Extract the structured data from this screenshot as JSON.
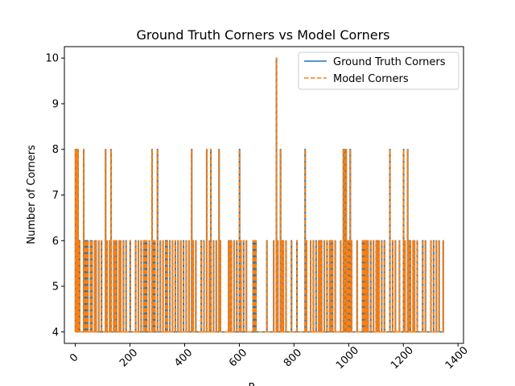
{
  "chart_data": {
    "type": "line",
    "title": "Ground Truth Corners vs Model Corners",
    "xlabel": "R",
    "ylabel": "Number of Corners",
    "xlim": [
      -40,
      1420
    ],
    "ylim": [
      3.75,
      10.25
    ],
    "xticks": [
      0,
      200,
      400,
      600,
      800,
      1000,
      1200,
      1400
    ],
    "yticks": [
      4,
      5,
      6,
      7,
      8,
      9,
      10
    ],
    "legend_position": "upper right",
    "grid": false,
    "series": [
      {
        "name": "Ground Truth Corners",
        "color": "#1f77b4",
        "style": "solid",
        "spikes": [
          [
            0,
            8
          ],
          [
            3,
            8
          ],
          [
            6,
            8
          ],
          [
            9,
            8
          ],
          [
            12,
            6
          ],
          [
            15,
            6
          ],
          [
            30,
            8
          ],
          [
            35,
            6
          ],
          [
            40,
            6
          ],
          [
            45,
            6
          ],
          [
            55,
            6
          ],
          [
            60,
            6
          ],
          [
            70,
            6
          ],
          [
            75,
            6
          ],
          [
            85,
            6
          ],
          [
            95,
            6
          ],
          [
            110,
            8
          ],
          [
            115,
            6
          ],
          [
            125,
            6
          ],
          [
            130,
            8
          ],
          [
            140,
            6
          ],
          [
            145,
            6
          ],
          [
            150,
            6
          ],
          [
            160,
            6
          ],
          [
            165,
            6
          ],
          [
            175,
            6
          ],
          [
            185,
            6
          ],
          [
            200,
            6
          ],
          [
            220,
            6
          ],
          [
            230,
            6
          ],
          [
            240,
            6
          ],
          [
            250,
            6
          ],
          [
            255,
            6
          ],
          [
            260,
            6
          ],
          [
            270,
            6
          ],
          [
            280,
            8
          ],
          [
            285,
            6
          ],
          [
            290,
            6
          ],
          [
            300,
            8
          ],
          [
            310,
            6
          ],
          [
            320,
            6
          ],
          [
            330,
            6
          ],
          [
            335,
            6
          ],
          [
            345,
            6
          ],
          [
            355,
            6
          ],
          [
            365,
            6
          ],
          [
            375,
            6
          ],
          [
            385,
            6
          ],
          [
            395,
            6
          ],
          [
            405,
            6
          ],
          [
            415,
            6
          ],
          [
            425,
            8
          ],
          [
            430,
            6
          ],
          [
            440,
            6
          ],
          [
            460,
            6
          ],
          [
            470,
            6
          ],
          [
            480,
            8
          ],
          [
            490,
            6
          ],
          [
            495,
            8
          ],
          [
            505,
            6
          ],
          [
            515,
            6
          ],
          [
            525,
            8
          ],
          [
            530,
            6
          ],
          [
            560,
            6
          ],
          [
            565,
            6
          ],
          [
            570,
            6
          ],
          [
            580,
            6
          ],
          [
            590,
            6
          ],
          [
            600,
            8
          ],
          [
            605,
            6
          ],
          [
            615,
            6
          ],
          [
            625,
            6
          ],
          [
            650,
            6
          ],
          [
            655,
            6
          ],
          [
            660,
            6
          ],
          [
            700,
            6
          ],
          [
            725,
            6
          ],
          [
            735,
            10
          ],
          [
            740,
            6
          ],
          [
            750,
            8
          ],
          [
            755,
            6
          ],
          [
            760,
            6
          ],
          [
            770,
            6
          ],
          [
            790,
            6
          ],
          [
            810,
            6
          ],
          [
            840,
            8
          ],
          [
            845,
            6
          ],
          [
            860,
            6
          ],
          [
            870,
            6
          ],
          [
            880,
            6
          ],
          [
            890,
            6
          ],
          [
            895,
            6
          ],
          [
            900,
            6
          ],
          [
            910,
            6
          ],
          [
            920,
            6
          ],
          [
            930,
            6
          ],
          [
            935,
            6
          ],
          [
            940,
            6
          ],
          [
            950,
            6
          ],
          [
            970,
            6
          ],
          [
            980,
            8
          ],
          [
            985,
            8
          ],
          [
            990,
            8
          ],
          [
            995,
            6
          ],
          [
            1000,
            6
          ],
          [
            1005,
            8
          ],
          [
            1010,
            6
          ],
          [
            1030,
            6
          ],
          [
            1050,
            6
          ],
          [
            1055,
            6
          ],
          [
            1060,
            6
          ],
          [
            1065,
            6
          ],
          [
            1070,
            6
          ],
          [
            1080,
            6
          ],
          [
            1090,
            6
          ],
          [
            1100,
            6
          ],
          [
            1105,
            6
          ],
          [
            1110,
            6
          ],
          [
            1120,
            6
          ],
          [
            1130,
            6
          ],
          [
            1150,
            8
          ],
          [
            1160,
            6
          ],
          [
            1170,
            6
          ],
          [
            1185,
            6
          ],
          [
            1200,
            8
          ],
          [
            1205,
            6
          ],
          [
            1215,
            8
          ],
          [
            1220,
            6
          ],
          [
            1225,
            6
          ],
          [
            1235,
            6
          ],
          [
            1240,
            6
          ],
          [
            1250,
            6
          ],
          [
            1270,
            6
          ],
          [
            1280,
            6
          ],
          [
            1300,
            6
          ],
          [
            1310,
            6
          ],
          [
            1320,
            6
          ],
          [
            1330,
            6
          ],
          [
            1345,
            6
          ]
        ]
      },
      {
        "name": "Model Corners",
        "color": "#ff7f0e",
        "style": "dashed",
        "spikes": [
          [
            0,
            8
          ],
          [
            3,
            8
          ],
          [
            6,
            8
          ],
          [
            9,
            8
          ],
          [
            12,
            6
          ],
          [
            15,
            6
          ],
          [
            30,
            8
          ],
          [
            35,
            6
          ],
          [
            40,
            6
          ],
          [
            45,
            6
          ],
          [
            55,
            6
          ],
          [
            60,
            6
          ],
          [
            70,
            6
          ],
          [
            75,
            6
          ],
          [
            85,
            6
          ],
          [
            95,
            6
          ],
          [
            110,
            8
          ],
          [
            115,
            6
          ],
          [
            125,
            6
          ],
          [
            130,
            8
          ],
          [
            140,
            6
          ],
          [
            145,
            6
          ],
          [
            150,
            6
          ],
          [
            160,
            6
          ],
          [
            165,
            6
          ],
          [
            175,
            6
          ],
          [
            185,
            6
          ],
          [
            200,
            6
          ],
          [
            220,
            6
          ],
          [
            230,
            6
          ],
          [
            240,
            6
          ],
          [
            250,
            6
          ],
          [
            255,
            6
          ],
          [
            260,
            6
          ],
          [
            270,
            6
          ],
          [
            280,
            8
          ],
          [
            285,
            6
          ],
          [
            290,
            6
          ],
          [
            300,
            8
          ],
          [
            310,
            6
          ],
          [
            320,
            6
          ],
          [
            330,
            6
          ],
          [
            335,
            6
          ],
          [
            345,
            6
          ],
          [
            355,
            6
          ],
          [
            365,
            6
          ],
          [
            375,
            6
          ],
          [
            385,
            6
          ],
          [
            395,
            6
          ],
          [
            405,
            6
          ],
          [
            415,
            6
          ],
          [
            425,
            8
          ],
          [
            430,
            6
          ],
          [
            440,
            6
          ],
          [
            460,
            6
          ],
          [
            470,
            6
          ],
          [
            480,
            8
          ],
          [
            490,
            6
          ],
          [
            495,
            8
          ],
          [
            505,
            6
          ],
          [
            515,
            6
          ],
          [
            525,
            8
          ],
          [
            530,
            6
          ],
          [
            560,
            6
          ],
          [
            565,
            6
          ],
          [
            570,
            6
          ],
          [
            580,
            6
          ],
          [
            590,
            6
          ],
          [
            600,
            8
          ],
          [
            605,
            6
          ],
          [
            615,
            6
          ],
          [
            625,
            6
          ],
          [
            650,
            6
          ],
          [
            655,
            6
          ],
          [
            660,
            6
          ],
          [
            700,
            6
          ],
          [
            725,
            6
          ],
          [
            735,
            10
          ],
          [
            740,
            6
          ],
          [
            750,
            8
          ],
          [
            755,
            6
          ],
          [
            760,
            6
          ],
          [
            770,
            6
          ],
          [
            790,
            6
          ],
          [
            810,
            6
          ],
          [
            840,
            8
          ],
          [
            845,
            6
          ],
          [
            860,
            6
          ],
          [
            870,
            6
          ],
          [
            880,
            6
          ],
          [
            890,
            6
          ],
          [
            895,
            6
          ],
          [
            900,
            6
          ],
          [
            910,
            6
          ],
          [
            920,
            6
          ],
          [
            930,
            6
          ],
          [
            935,
            6
          ],
          [
            940,
            6
          ],
          [
            950,
            6
          ],
          [
            970,
            6
          ],
          [
            980,
            8
          ],
          [
            985,
            8
          ],
          [
            990,
            8
          ],
          [
            995,
            6
          ],
          [
            1000,
            6
          ],
          [
            1005,
            8
          ],
          [
            1010,
            6
          ],
          [
            1030,
            6
          ],
          [
            1050,
            6
          ],
          [
            1055,
            6
          ],
          [
            1060,
            6
          ],
          [
            1065,
            6
          ],
          [
            1070,
            6
          ],
          [
            1080,
            6
          ],
          [
            1090,
            6
          ],
          [
            1100,
            6
          ],
          [
            1105,
            6
          ],
          [
            1110,
            6
          ],
          [
            1120,
            6
          ],
          [
            1130,
            6
          ],
          [
            1150,
            8
          ],
          [
            1160,
            6
          ],
          [
            1170,
            6
          ],
          [
            1185,
            6
          ],
          [
            1200,
            8
          ],
          [
            1205,
            6
          ],
          [
            1215,
            8
          ],
          [
            1220,
            6
          ],
          [
            1225,
            6
          ],
          [
            1235,
            6
          ],
          [
            1240,
            6
          ],
          [
            1250,
            6
          ],
          [
            1270,
            6
          ],
          [
            1280,
            6
          ],
          [
            1300,
            6
          ],
          [
            1310,
            6
          ],
          [
            1320,
            6
          ],
          [
            1330,
            6
          ],
          [
            1345,
            6
          ]
        ]
      }
    ],
    "x_max": 1345
  }
}
